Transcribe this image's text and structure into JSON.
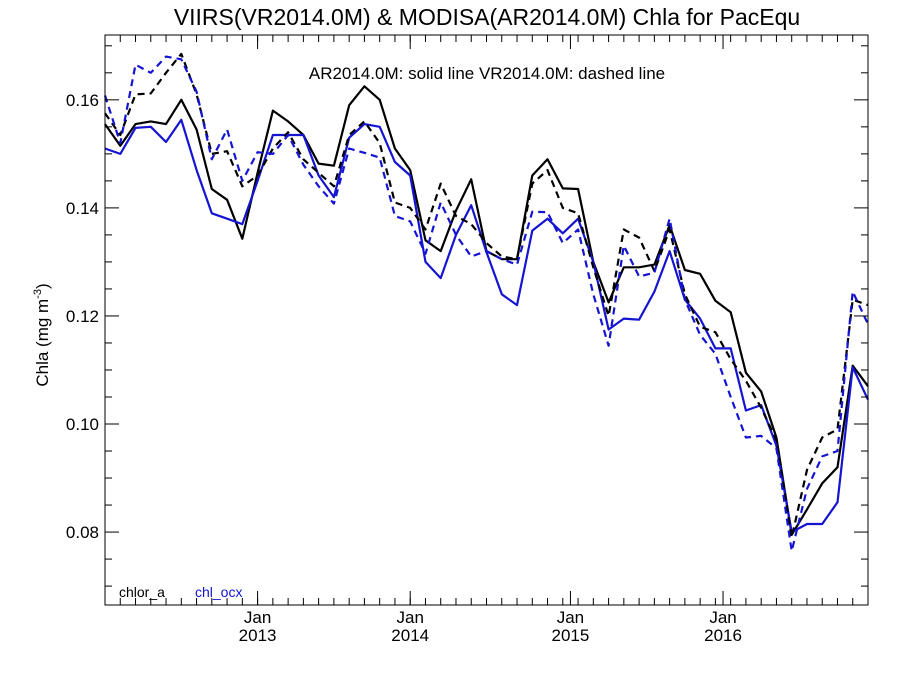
{
  "chart_data": {
    "type": "line",
    "title": "VIIRS(VR2014.0M) & MODISA(AR2014.0M)  Chla for PacEqu",
    "annotation": "AR2014.0M: solid line   VR2014.0M: dashed line",
    "ylabel_main": "Chla (mg m",
    "ylabel_sup": "-3",
    "ylabel_end": ")",
    "ylim": [
      0.0665,
      0.172
    ],
    "xlim": [
      0,
      50
    ],
    "yticks": [
      "0.08",
      "0.10",
      "0.12",
      "0.14",
      "0.16"
    ],
    "xticks": [
      {
        "month": 10,
        "line1": "Jan",
        "line2": "2013"
      },
      {
        "month": 20,
        "line1": "Jan",
        "line2": "2014"
      },
      {
        "month": 30.5,
        "line1": "Jan",
        "line2": "2015"
      },
      {
        "month": 40.5,
        "line1": "Jan",
        "line2": "2016"
      }
    ],
    "legend": [
      {
        "label": "chlor_a",
        "color": "#000000"
      },
      {
        "label": "chl_ocx",
        "color": "#1414d2"
      }
    ],
    "series": [
      {
        "name": "chlor_a",
        "product": "AR2014.0M",
        "color": "#000000",
        "dash": false,
        "x": [
          0,
          1,
          2,
          3,
          4,
          5,
          6,
          7,
          8,
          9,
          10,
          11,
          12,
          13,
          14,
          15,
          16,
          17,
          18,
          19,
          20,
          21,
          22,
          23,
          24,
          25,
          26,
          27,
          28,
          29,
          30,
          31,
          32,
          33,
          34,
          35,
          36,
          37,
          38,
          39,
          40,
          41,
          42,
          43,
          44,
          45,
          46,
          47,
          48,
          49,
          50
        ],
        "values": [
          0.1555,
          0.1515,
          0.1555,
          0.156,
          0.1555,
          0.16,
          0.1545,
          0.1435,
          0.1415,
          0.1343,
          0.1465,
          0.158,
          0.156,
          0.1535,
          0.1482,
          0.1478,
          0.159,
          0.1625,
          0.16,
          0.151,
          0.147,
          0.134,
          0.132,
          0.1395,
          0.1453,
          0.132,
          0.1305,
          0.1305,
          0.146,
          0.149,
          0.1436,
          0.1435,
          0.13,
          0.1225,
          0.129,
          0.129,
          0.1295,
          0.1368,
          0.1285,
          0.1278,
          0.1228,
          0.1207,
          0.1095,
          0.106,
          0.0975,
          0.0795,
          0.0842,
          0.089,
          0.092,
          0.1108,
          0.107
        ]
      },
      {
        "name": "chl_ocx",
        "product": "AR2014.0M",
        "color": "#1414d2",
        "dash": false,
        "x": [
          0,
          1,
          2,
          3,
          4,
          5,
          6,
          7,
          8,
          9,
          10,
          11,
          12,
          13,
          14,
          15,
          16,
          17,
          18,
          19,
          20,
          21,
          22,
          23,
          24,
          25,
          26,
          27,
          28,
          29,
          30,
          31,
          32,
          33,
          34,
          35,
          36,
          37,
          38,
          39,
          40,
          41,
          42,
          43,
          44,
          45,
          46,
          47,
          48,
          49,
          50
        ],
        "values": [
          0.151,
          0.15,
          0.1548,
          0.155,
          0.1522,
          0.1563,
          0.147,
          0.139,
          0.138,
          0.137,
          0.145,
          0.1535,
          0.1535,
          0.1535,
          0.146,
          0.142,
          0.153,
          0.1555,
          0.155,
          0.1485,
          0.146,
          0.13,
          0.127,
          0.135,
          0.1405,
          0.1318,
          0.124,
          0.122,
          0.1358,
          0.138,
          0.1353,
          0.138,
          0.13,
          0.1175,
          0.1195,
          0.1193,
          0.1245,
          0.132,
          0.123,
          0.1195,
          0.114,
          0.114,
          0.1025,
          0.1035,
          0.096,
          0.08,
          0.0815,
          0.0815,
          0.0855,
          0.1105,
          0.1045
        ]
      },
      {
        "name": "chlor_a",
        "product": "VR2014.0M",
        "color": "#000000",
        "dash": true,
        "x": [
          0,
          1,
          2,
          3,
          4,
          5,
          6,
          7,
          8,
          9,
          10,
          11,
          12,
          13,
          14,
          15,
          16,
          17,
          18,
          19,
          20,
          21,
          22,
          23,
          24,
          25,
          26,
          27,
          28,
          29,
          30,
          31,
          32,
          33,
          34,
          35,
          36,
          37,
          38,
          39,
          40,
          41,
          42,
          43,
          44,
          45,
          46,
          47,
          48,
          49,
          50
        ],
        "values": [
          0.1575,
          0.1535,
          0.161,
          0.1612,
          0.165,
          0.1685,
          0.161,
          0.15,
          0.1505,
          0.144,
          0.146,
          0.151,
          0.154,
          0.149,
          0.1465,
          0.144,
          0.1535,
          0.156,
          0.152,
          0.141,
          0.14,
          0.136,
          0.1445,
          0.1385,
          0.137,
          0.1335,
          0.131,
          0.1305,
          0.1445,
          0.147,
          0.14,
          0.139,
          0.129,
          0.12,
          0.136,
          0.1345,
          0.1283,
          0.136,
          0.124,
          0.118,
          0.117,
          0.112,
          0.108,
          0.103,
          0.097,
          0.079,
          0.0915,
          0.0975,
          0.099,
          0.123,
          0.122
        ]
      },
      {
        "name": "chl_ocx",
        "product": "VR2014.0M",
        "color": "#1414d2",
        "dash": true,
        "x": [
          0,
          1,
          2,
          3,
          4,
          5,
          6,
          7,
          8,
          9,
          10,
          11,
          12,
          13,
          14,
          15,
          16,
          17,
          18,
          19,
          20,
          21,
          22,
          23,
          24,
          25,
          26,
          27,
          28,
          29,
          30,
          31,
          32,
          33,
          34,
          35,
          36,
          37,
          38,
          39,
          40,
          41,
          42,
          43,
          44,
          45,
          46,
          47,
          48,
          49,
          50
        ],
        "values": [
          0.1608,
          0.152,
          0.1665,
          0.165,
          0.168,
          0.1675,
          0.1615,
          0.149,
          0.1545,
          0.145,
          0.1503,
          0.15,
          0.1535,
          0.148,
          0.144,
          0.1408,
          0.151,
          0.1502,
          0.1493,
          0.1385,
          0.1375,
          0.1315,
          0.141,
          0.135,
          0.131,
          0.132,
          0.1305,
          0.1295,
          0.1393,
          0.1392,
          0.1335,
          0.136,
          0.124,
          0.1145,
          0.133,
          0.1273,
          0.128,
          0.138,
          0.123,
          0.1165,
          0.113,
          0.105,
          0.0975,
          0.0978,
          0.0955,
          0.0765,
          0.088,
          0.094,
          0.095,
          0.1245,
          0.1185
        ]
      }
    ]
  }
}
